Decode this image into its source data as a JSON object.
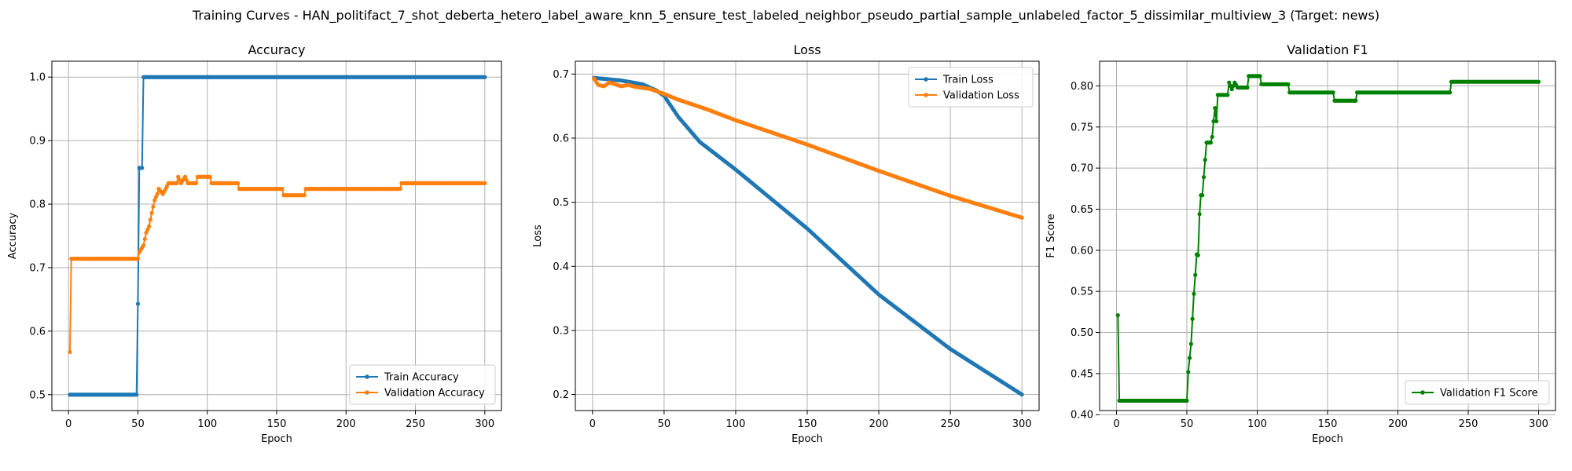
{
  "figure": {
    "suptitle": "Training Curves - HAN_politifact_7_shot_deberta_hetero_label_aware_knn_5_ensure_test_labeled_neighbor_pseudo_partial_sample_unlabeled_factor_5_dissimilar_multiview_3 (Target: news)"
  },
  "colors": {
    "blue": "#1f77b4",
    "orange": "#ff7f0e",
    "green": "#008000",
    "grid": "#b0b0b0"
  },
  "chart_data": [
    {
      "type": "line",
      "title": "Accuracy",
      "xlabel": "Epoch",
      "ylabel": "Accuracy",
      "xlim": [
        -12,
        312
      ],
      "ylim": [
        0.475,
        1.025
      ],
      "xticks": [
        0,
        50,
        100,
        150,
        200,
        250,
        300
      ],
      "yticks": [
        0.5,
        0.6,
        0.7,
        0.8,
        0.9,
        1.0
      ],
      "ytick_labels": [
        "0.5",
        "0.6",
        "0.7",
        "0.8",
        "0.9",
        "1.0"
      ],
      "grid": true,
      "legend": "lower right",
      "series": [
        {
          "name": "Train Accuracy",
          "color": "#1f77b4",
          "knots": [
            [
              1,
              0.5
            ],
            [
              49,
              0.5
            ],
            [
              50,
              0.643
            ],
            [
              51,
              0.857
            ],
            [
              53,
              0.857
            ],
            [
              54,
              1.0
            ],
            [
              300,
              1.0
            ]
          ]
        },
        {
          "name": "Validation Accuracy",
          "color": "#ff7f0e",
          "knots": [
            [
              1,
              0.567
            ],
            [
              2,
              0.714
            ],
            [
              50,
              0.714
            ],
            [
              51,
              0.724
            ],
            [
              54,
              0.735
            ],
            [
              56,
              0.755
            ],
            [
              58,
              0.765
            ],
            [
              60,
              0.786
            ],
            [
              62,
              0.806
            ],
            [
              64,
              0.816
            ],
            [
              65,
              0.824
            ],
            [
              68,
              0.816
            ],
            [
              70,
              0.824
            ],
            [
              72,
              0.833
            ],
            [
              78,
              0.833
            ],
            [
              79,
              0.843
            ],
            [
              81,
              0.833
            ],
            [
              84,
              0.843
            ],
            [
              86,
              0.833
            ],
            [
              92,
              0.833
            ],
            [
              93,
              0.843
            ],
            [
              102,
              0.843
            ],
            [
              103,
              0.833
            ],
            [
              122,
              0.833
            ],
            [
              123,
              0.824
            ],
            [
              154,
              0.824
            ],
            [
              155,
              0.814
            ],
            [
              170,
              0.814
            ],
            [
              171,
              0.824
            ],
            [
              239,
              0.824
            ],
            [
              240,
              0.833
            ],
            [
              300,
              0.833
            ]
          ]
        }
      ]
    },
    {
      "type": "line",
      "title": "Loss",
      "xlabel": "Epoch",
      "ylabel": "Loss",
      "xlim": [
        -12,
        312
      ],
      "ylim": [
        0.175,
        0.72
      ],
      "xticks": [
        0,
        50,
        100,
        150,
        200,
        250,
        300
      ],
      "yticks": [
        0.2,
        0.3,
        0.4,
        0.5,
        0.6,
        0.7
      ],
      "ytick_labels": [
        "0.2",
        "0.3",
        "0.4",
        "0.5",
        "0.6",
        "0.7"
      ],
      "grid": true,
      "legend": "upper right",
      "series": [
        {
          "name": "Train Loss",
          "color": "#1f77b4",
          "knots": [
            [
              1,
              0.694
            ],
            [
              20,
              0.69
            ],
            [
              35,
              0.684
            ],
            [
              45,
              0.674
            ],
            [
              50,
              0.666
            ],
            [
              60,
              0.633
            ],
            [
              75,
              0.594
            ],
            [
              100,
              0.551
            ],
            [
              150,
              0.459
            ],
            [
              200,
              0.356
            ],
            [
              250,
              0.271
            ],
            [
              300,
              0.2
            ]
          ]
        },
        {
          "name": "Validation Loss",
          "color": "#ff7f0e",
          "knots": [
            [
              1,
              0.693
            ],
            [
              4,
              0.683
            ],
            [
              8,
              0.681
            ],
            [
              12,
              0.687
            ],
            [
              16,
              0.684
            ],
            [
              20,
              0.681
            ],
            [
              25,
              0.683
            ],
            [
              30,
              0.68
            ],
            [
              40,
              0.677
            ],
            [
              50,
              0.669
            ],
            [
              60,
              0.66
            ],
            [
              80,
              0.645
            ],
            [
              100,
              0.628
            ],
            [
              150,
              0.59
            ],
            [
              200,
              0.549
            ],
            [
              250,
              0.51
            ],
            [
              300,
              0.476
            ]
          ]
        }
      ]
    },
    {
      "type": "line",
      "title": "Validation F1",
      "xlabel": "Epoch",
      "ylabel": "F1 Score",
      "xlim": [
        -12,
        312
      ],
      "ylim": [
        0.405,
        0.83
      ],
      "xticks": [
        0,
        50,
        100,
        150,
        200,
        250,
        300
      ],
      "yticks": [
        0.4,
        0.45,
        0.5,
        0.55,
        0.6,
        0.65,
        0.7,
        0.75,
        0.8
      ],
      "ytick_labels": [
        "0.40",
        "0.45",
        "0.50",
        "0.55",
        "0.60",
        "0.65",
        "0.70",
        "0.75",
        "0.80"
      ],
      "grid": true,
      "legend": "lower right",
      "series": [
        {
          "name": "Validation F1 Score",
          "color": "#008000",
          "knots": [
            [
              1,
              0.521
            ],
            [
              2,
              0.417
            ],
            [
              50,
              0.417
            ],
            [
              51,
              0.452
            ],
            [
              53,
              0.486
            ],
            [
              55,
              0.547
            ],
            [
              56,
              0.57
            ],
            [
              57,
              0.595
            ],
            [
              58,
              0.594
            ],
            [
              59,
              0.644
            ],
            [
              60,
              0.667
            ],
            [
              61,
              0.667
            ],
            [
              62,
              0.689
            ],
            [
              64,
              0.731
            ],
            [
              67,
              0.731
            ],
            [
              68,
              0.738
            ],
            [
              69,
              0.757
            ],
            [
              70,
              0.773
            ],
            [
              71,
              0.757
            ],
            [
              72,
              0.789
            ],
            [
              79,
              0.789
            ],
            [
              80,
              0.804
            ],
            [
              82,
              0.796
            ],
            [
              84,
              0.804
            ],
            [
              86,
              0.798
            ],
            [
              93,
              0.798
            ],
            [
              94,
              0.812
            ],
            [
              102,
              0.812
            ],
            [
              103,
              0.802
            ],
            [
              122,
              0.802
            ],
            [
              123,
              0.792
            ],
            [
              154,
              0.792
            ],
            [
              155,
              0.782
            ],
            [
              170,
              0.782
            ],
            [
              171,
              0.792
            ],
            [
              237,
              0.792
            ],
            [
              238,
              0.805
            ],
            [
              300,
              0.805
            ]
          ]
        }
      ]
    }
  ]
}
